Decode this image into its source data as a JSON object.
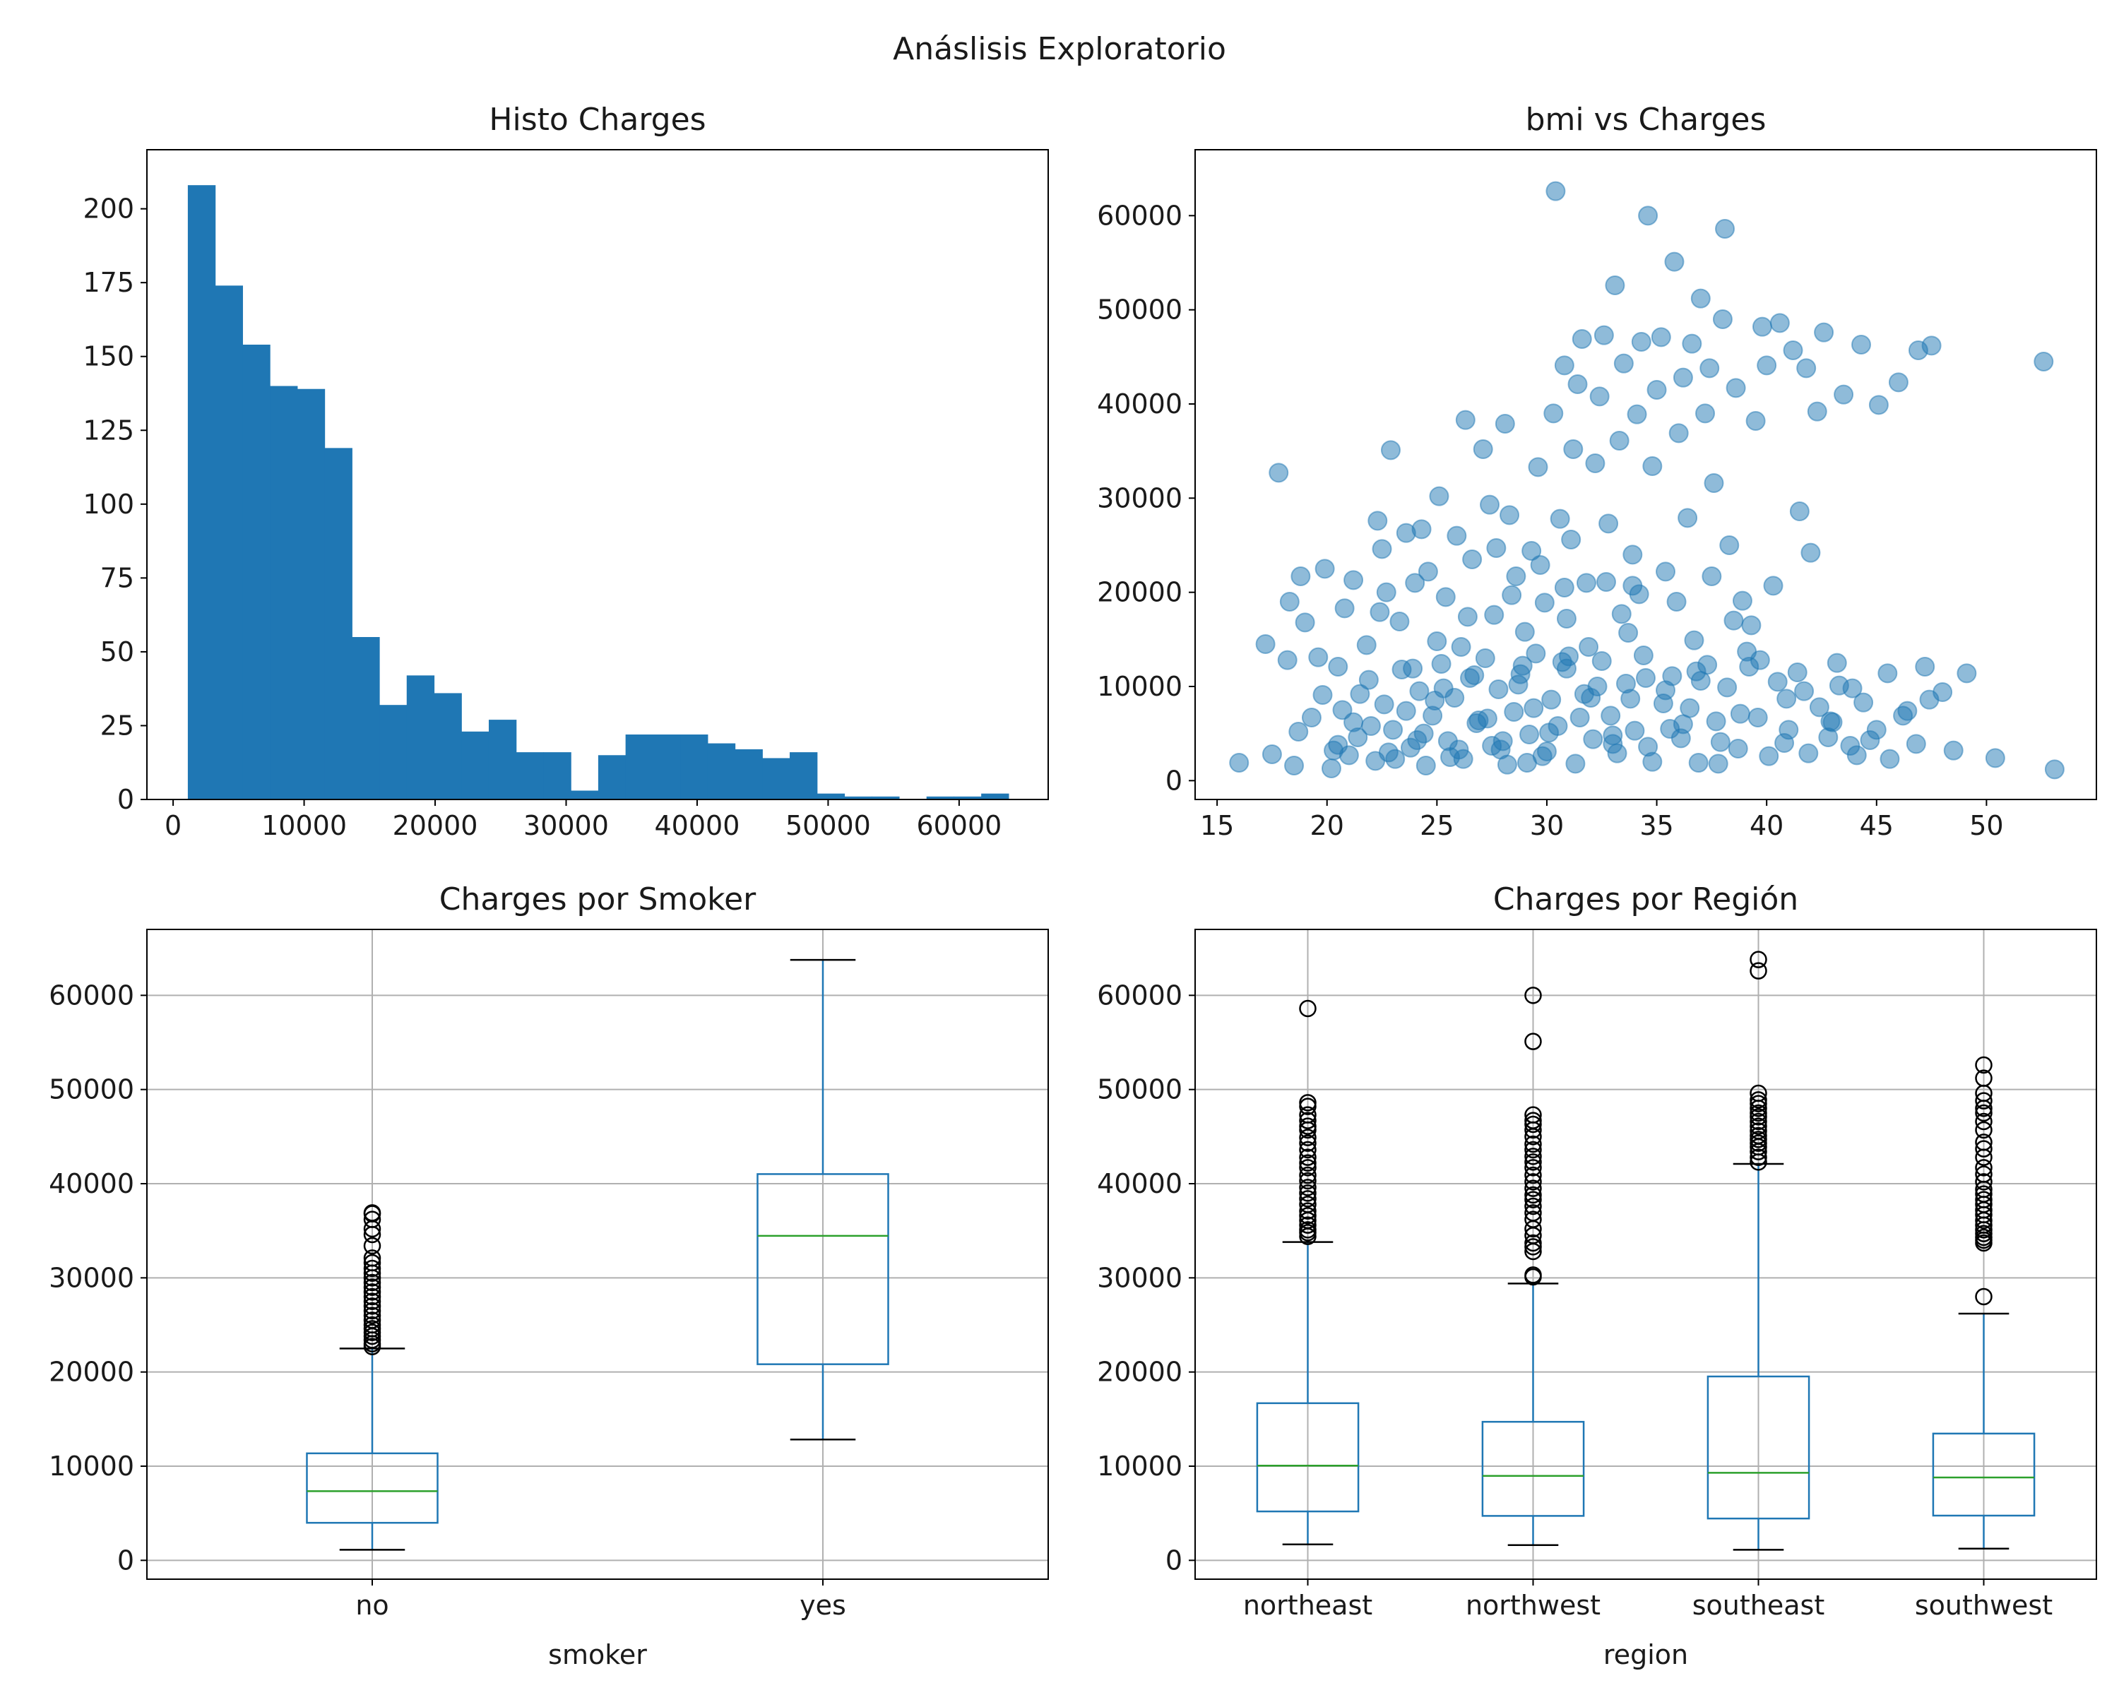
{
  "figure": {
    "suptitle": "Anáslisis Exploratorio"
  },
  "colors": {
    "primary": "#1f77b4",
    "median": "#2ca02c",
    "outlier": "#000000",
    "grid": "#b0b0b0"
  },
  "chart_data": [
    {
      "type": "bar",
      "subtype": "histogram",
      "title": "Histo Charges",
      "xlabel": "",
      "ylabel": "",
      "bin_start": 1121.87,
      "bin_width": 2088.44,
      "counts": [
        208,
        174,
        154,
        140,
        139,
        119,
        55,
        32,
        42,
        36,
        23,
        27,
        16,
        16,
        3,
        15,
        22,
        22,
        22,
        19,
        17,
        14,
        16,
        2,
        1,
        1,
        0,
        1,
        1,
        2
      ],
      "xlim": [
        -2000,
        66800
      ],
      "ylim": [
        0,
        220
      ],
      "xticks": [
        0,
        10000,
        20000,
        30000,
        40000,
        50000,
        60000
      ],
      "yticks": [
        0,
        25,
        50,
        75,
        100,
        125,
        150,
        175,
        200
      ],
      "grid": false
    },
    {
      "type": "scatter",
      "title": "bmi vs Charges",
      "xlabel": "",
      "ylabel": "",
      "xlim": [
        14,
        55
      ],
      "ylim": [
        -2000,
        67000
      ],
      "xticks": [
        15,
        20,
        25,
        30,
        35,
        40,
        45,
        50
      ],
      "yticks": [
        0,
        10000,
        20000,
        30000,
        40000,
        50000,
        60000
      ],
      "alpha": 0.5,
      "grid": false,
      "points": [
        [
          16,
          1900
        ],
        [
          17.2,
          14500
        ],
        [
          17.5,
          2800
        ],
        [
          17.8,
          32700
        ],
        [
          18.2,
          12800
        ],
        [
          18.3,
          19000
        ],
        [
          18.5,
          1600
        ],
        [
          18.8,
          21700
        ],
        [
          19,
          16800
        ],
        [
          19.3,
          6700
        ],
        [
          19.6,
          13100
        ],
        [
          19.9,
          22500
        ],
        [
          20.3,
          3200
        ],
        [
          20.5,
          12100
        ],
        [
          20.8,
          18300
        ],
        [
          21,
          2700
        ],
        [
          21.2,
          21300
        ],
        [
          21.5,
          9200
        ],
        [
          21.8,
          14400
        ],
        [
          22,
          5800
        ],
        [
          22.3,
          27600
        ],
        [
          22.5,
          24600
        ],
        [
          22.7,
          20000
        ],
        [
          22.9,
          35100
        ],
        [
          23.1,
          2300
        ],
        [
          23.3,
          16900
        ],
        [
          23.6,
          26300
        ],
        [
          23.9,
          11900
        ],
        [
          24.1,
          4300
        ],
        [
          24.3,
          26700
        ],
        [
          24.6,
          22200
        ],
        [
          24.9,
          8500
        ],
        [
          25.1,
          30200
        ],
        [
          25.4,
          19500
        ],
        [
          25.6,
          2500
        ],
        [
          25.9,
          26000
        ],
        [
          26.1,
          14200
        ],
        [
          26.3,
          38300
        ],
        [
          26.6,
          23500
        ],
        [
          26.9,
          6400
        ],
        [
          27.1,
          35200
        ],
        [
          27.4,
          29300
        ],
        [
          27.6,
          17600
        ],
        [
          27.9,
          3300
        ],
        [
          28.1,
          37900
        ],
        [
          28.3,
          28200
        ],
        [
          28.6,
          21700
        ],
        [
          28.9,
          12200
        ],
        [
          29.1,
          1900
        ],
        [
          29.3,
          24400
        ],
        [
          29.6,
          33300
        ],
        [
          29.9,
          18900
        ],
        [
          30.1,
          5100
        ],
        [
          30.3,
          39000
        ],
        [
          30.4,
          62600
        ],
        [
          30.6,
          27800
        ],
        [
          30.8,
          44100
        ],
        [
          31,
          13200
        ],
        [
          31.2,
          35200
        ],
        [
          31.4,
          42100
        ],
        [
          31.6,
          46900
        ],
        [
          31.8,
          21000
        ],
        [
          32,
          8800
        ],
        [
          32.2,
          33700
        ],
        [
          32.4,
          40800
        ],
        [
          32.6,
          47300
        ],
        [
          32.8,
          27300
        ],
        [
          33,
          3900
        ],
        [
          33.1,
          52600
        ],
        [
          33.3,
          36100
        ],
        [
          33.5,
          44300
        ],
        [
          33.7,
          15700
        ],
        [
          33.9,
          24000
        ],
        [
          34.1,
          38900
        ],
        [
          34.3,
          46600
        ],
        [
          34.5,
          10900
        ],
        [
          34.6,
          60000
        ],
        [
          34.8,
          33400
        ],
        [
          35,
          41500
        ],
        [
          35.2,
          47100
        ],
        [
          35.4,
          22200
        ],
        [
          35.6,
          5500
        ],
        [
          35.8,
          55100
        ],
        [
          36,
          36900
        ],
        [
          36.2,
          42800
        ],
        [
          36.4,
          27900
        ],
        [
          36.6,
          46400
        ],
        [
          36.8,
          11600
        ],
        [
          37,
          51200
        ],
        [
          37.2,
          39000
        ],
        [
          37.4,
          43800
        ],
        [
          37.6,
          31600
        ],
        [
          37.8,
          1800
        ],
        [
          38,
          49000
        ],
        [
          38.1,
          58600
        ],
        [
          38.3,
          25000
        ],
        [
          38.6,
          41700
        ],
        [
          38.9,
          19100
        ],
        [
          39.2,
          12100
        ],
        [
          39.5,
          38200
        ],
        [
          39.8,
          48200
        ],
        [
          40,
          44100
        ],
        [
          40.3,
          20700
        ],
        [
          40.6,
          48600
        ],
        [
          40.9,
          8700
        ],
        [
          41.2,
          45700
        ],
        [
          41.5,
          28600
        ],
        [
          41.8,
          43800
        ],
        [
          42,
          24200
        ],
        [
          42.3,
          39200
        ],
        [
          42.6,
          47600
        ],
        [
          42.9,
          6300
        ],
        [
          43.2,
          12500
        ],
        [
          43.5,
          41000
        ],
        [
          43.9,
          9800
        ],
        [
          44.3,
          46300
        ],
        [
          44.7,
          4300
        ],
        [
          45.1,
          39900
        ],
        [
          45.5,
          11400
        ],
        [
          46,
          42300
        ],
        [
          46.4,
          7400
        ],
        [
          46.9,
          45700
        ],
        [
          47.2,
          12100
        ],
        [
          47.5,
          46200
        ],
        [
          48,
          9400
        ],
        [
          48.5,
          3200
        ],
        [
          49.1,
          11400
        ],
        [
          50.4,
          2400
        ],
        [
          52.6,
          44500
        ],
        [
          53.1,
          1200
        ],
        [
          18.7,
          5200
        ],
        [
          19.8,
          9100
        ],
        [
          20.2,
          1300
        ],
        [
          20.7,
          7500
        ],
        [
          21.4,
          4600
        ],
        [
          21.9,
          10700
        ],
        [
          22.2,
          2100
        ],
        [
          22.6,
          8100
        ],
        [
          23,
          5400
        ],
        [
          23.4,
          11800
        ],
        [
          23.8,
          3500
        ],
        [
          24.2,
          9500
        ],
        [
          24.5,
          1600
        ],
        [
          24.8,
          6900
        ],
        [
          25.2,
          12400
        ],
        [
          25.5,
          4200
        ],
        [
          25.8,
          8800
        ],
        [
          26.2,
          2300
        ],
        [
          26.5,
          10900
        ],
        [
          26.8,
          6100
        ],
        [
          27.2,
          13000
        ],
        [
          27.5,
          3700
        ],
        [
          27.8,
          9700
        ],
        [
          28.2,
          1700
        ],
        [
          28.5,
          7300
        ],
        [
          28.8,
          11300
        ],
        [
          29.2,
          4900
        ],
        [
          29.5,
          13500
        ],
        [
          29.8,
          2600
        ],
        [
          30.2,
          8600
        ],
        [
          30.5,
          5800
        ],
        [
          30.9,
          11900
        ],
        [
          31.3,
          1800
        ],
        [
          31.7,
          9200
        ],
        [
          32.1,
          4400
        ],
        [
          32.5,
          12700
        ],
        [
          32.9,
          6900
        ],
        [
          33.2,
          2900
        ],
        [
          33.6,
          10300
        ],
        [
          34,
          5300
        ],
        [
          34.4,
          13300
        ],
        [
          34.8,
          2000
        ],
        [
          35.3,
          8200
        ],
        [
          35.7,
          11100
        ],
        [
          36.1,
          4500
        ],
        [
          36.5,
          7700
        ],
        [
          36.9,
          1900
        ],
        [
          37.3,
          12300
        ],
        [
          37.7,
          6300
        ],
        [
          38.2,
          9900
        ],
        [
          38.7,
          3400
        ],
        [
          39.1,
          13700
        ],
        [
          39.6,
          6700
        ],
        [
          40.1,
          2600
        ],
        [
          40.5,
          10500
        ],
        [
          41,
          5400
        ],
        [
          41.4,
          11500
        ],
        [
          41.9,
          2900
        ],
        [
          42.4,
          7800
        ],
        [
          42.8,
          4600
        ],
        [
          43.3,
          10100
        ],
        [
          43.8,
          3700
        ],
        [
          44.4,
          8300
        ],
        [
          45,
          5400
        ],
        [
          45.6,
          2300
        ],
        [
          46.2,
          6900
        ],
        [
          46.8,
          3900
        ],
        [
          47.4,
          8600
        ],
        [
          20.5,
          3800
        ],
        [
          21.2,
          6200
        ],
        [
          22.8,
          3000
        ],
        [
          23.6,
          7400
        ],
        [
          24.4,
          5000
        ],
        [
          25.3,
          9800
        ],
        [
          26,
          3300
        ],
        [
          26.7,
          11200
        ],
        [
          27.3,
          6600
        ],
        [
          28,
          4200
        ],
        [
          28.7,
          10200
        ],
        [
          29.4,
          7700
        ],
        [
          30,
          3100
        ],
        [
          30.7,
          12600
        ],
        [
          31.5,
          6700
        ],
        [
          32.3,
          10000
        ],
        [
          33,
          4800
        ],
        [
          33.8,
          8700
        ],
        [
          34.6,
          3600
        ],
        [
          35.4,
          9600
        ],
        [
          36.2,
          6000
        ],
        [
          37,
          10600
        ],
        [
          37.9,
          4100
        ],
        [
          38.8,
          7100
        ],
        [
          39.7,
          12800
        ],
        [
          40.8,
          4000
        ],
        [
          41.7,
          9500
        ],
        [
          43,
          6200
        ],
        [
          44.1,
          2700
        ],
        [
          25,
          14800
        ],
        [
          29,
          15800
        ],
        [
          31.9,
          14200
        ],
        [
          33.4,
          17700
        ],
        [
          36.7,
          14900
        ],
        [
          39.3,
          16500
        ],
        [
          26.4,
          17400
        ],
        [
          28.4,
          19700
        ],
        [
          30.8,
          20500
        ],
        [
          32.7,
          21100
        ],
        [
          34.2,
          19800
        ],
        [
          37.5,
          21700
        ],
        [
          27.7,
          24700
        ],
        [
          31.1,
          25600
        ],
        [
          33.9,
          20700
        ],
        [
          35.9,
          19000
        ],
        [
          24,
          21000
        ],
        [
          22.4,
          17900
        ],
        [
          29.7,
          22900
        ],
        [
          30.9,
          17200
        ],
        [
          38.5,
          17000
        ]
      ]
    },
    {
      "type": "boxplot",
      "title": "Charges por Smoker",
      "xlabel": "smoker",
      "ylabel": "",
      "ylim": [
        -2000,
        67000
      ],
      "yticks": [
        0,
        10000,
        20000,
        30000,
        40000,
        50000,
        60000
      ],
      "grid": true,
      "categories": [
        "no",
        "yes"
      ],
      "boxes": [
        {
          "label": "no",
          "whislo": 1122,
          "q1": 3986,
          "med": 7345,
          "q3": 11363,
          "whishi": 22500,
          "fliers": [
            22700,
            23000,
            23400,
            23800,
            24200,
            24600,
            25000,
            25500,
            26000,
            26500,
            27000,
            27500,
            28000,
            28500,
            29000,
            29500,
            30000,
            30500,
            31000,
            31600,
            32100,
            33400,
            34600,
            35200,
            36200,
            36800,
            36900
          ]
        },
        {
          "label": "yes",
          "whislo": 12829,
          "q1": 20826,
          "med": 34456,
          "q3": 41019,
          "whishi": 63770,
          "fliers": []
        }
      ]
    },
    {
      "type": "boxplot",
      "title": "Charges por Región",
      "xlabel": "region",
      "ylabel": "",
      "ylim": [
        -2000,
        67000
      ],
      "yticks": [
        0,
        10000,
        20000,
        30000,
        40000,
        50000,
        60000
      ],
      "grid": true,
      "categories": [
        "northeast",
        "northwest",
        "southeast",
        "southwest"
      ],
      "boxes": [
        {
          "label": "northeast",
          "whislo": 1695,
          "q1": 5194,
          "med": 10058,
          "q3": 16688,
          "whishi": 33800,
          "fliers": [
            34400,
            34800,
            35100,
            35600,
            36100,
            36600,
            37100,
            37800,
            38400,
            39000,
            39600,
            40300,
            40900,
            41700,
            42200,
            42800,
            43600,
            44300,
            44900,
            45700,
            46100,
            46700,
            47300,
            48200,
            48600,
            58600
          ]
        },
        {
          "label": "northwest",
          "whislo": 1621,
          "q1": 4720,
          "med": 8966,
          "q3": 14712,
          "whishi": 29400,
          "fliers": [
            30100,
            30300,
            32800,
            33300,
            33700,
            34500,
            35200,
            36200,
            36900,
            37600,
            38300,
            38800,
            39500,
            40200,
            40900,
            41700,
            42300,
            42900,
            43600,
            44200,
            45000,
            45700,
            46300,
            46700,
            47300,
            55100,
            60000
          ]
        },
        {
          "label": "southeast",
          "whislo": 1122,
          "q1": 4441,
          "med": 9294,
          "q3": 19526,
          "whishi": 42100,
          "fliers": [
            42300,
            42800,
            43400,
            43900,
            44300,
            44700,
            45100,
            45600,
            46100,
            46600,
            47100,
            47500,
            48000,
            48500,
            48900,
            49600,
            62600,
            63800
          ]
        },
        {
          "label": "southwest",
          "whislo": 1242,
          "q1": 4751,
          "med": 8799,
          "q3": 13463,
          "whishi": 26200,
          "fliers": [
            28000,
            33700,
            34000,
            34300,
            34700,
            35100,
            35600,
            36100,
            36700,
            37200,
            37800,
            38300,
            38900,
            39400,
            40200,
            41000,
            41700,
            42800,
            43700,
            44400,
            45700,
            46600,
            47500,
            48000,
            48800,
            49600,
            51200,
            52600
          ]
        }
      ]
    }
  ]
}
